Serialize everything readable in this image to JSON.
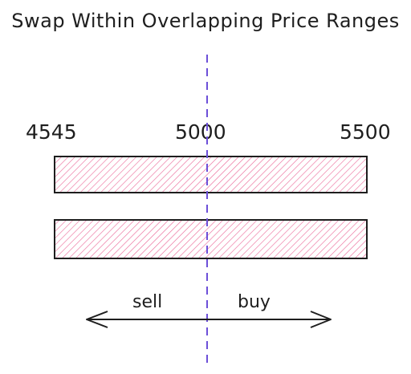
{
  "title": "Swap Within Overlapping Price Ranges",
  "price_labels": {
    "lower": "4545",
    "current": "5000",
    "upper": "5500"
  },
  "directions": {
    "left": "sell",
    "right": "buy"
  },
  "colors": {
    "hatch": "#e8548a",
    "stroke": "#1e1e1e",
    "price_line": "#6c4fd8"
  }
}
